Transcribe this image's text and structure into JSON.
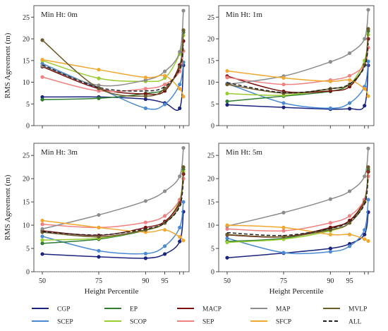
{
  "chart_data": [
    {
      "type": "line",
      "title": "Min Ht: 0m",
      "ylabel": "RMS Agreement (m)",
      "xlabel": "",
      "xticks": [
        50,
        75,
        90,
        95
      ],
      "yticks": [
        0,
        5,
        10,
        15,
        20,
        25
      ],
      "ylim": [
        0,
        27
      ],
      "grid": false,
      "series": [
        {
          "name": "CGP",
          "x": [
            50,
            75,
            90,
            95,
            99,
            100
          ],
          "y": [
            6.6,
            6.6,
            6.1,
            5.2,
            4.0,
            13.9
          ]
        },
        {
          "name": "SCEP",
          "x": [
            50,
            75,
            90,
            95,
            99,
            100
          ],
          "y": [
            14.3,
            8.6,
            4.0,
            4.9,
            9.5,
            14.6
          ]
        },
        {
          "name": "EP",
          "x": [
            50,
            75,
            90,
            95,
            99,
            100
          ],
          "y": [
            6.0,
            6.3,
            7.4,
            8.5,
            13.5,
            21.5
          ]
        },
        {
          "name": "SCOP",
          "x": [
            50,
            75,
            90,
            95,
            99,
            100
          ],
          "y": [
            15.0,
            10.9,
            10.2,
            11.0,
            16.5,
            20.8
          ]
        },
        {
          "name": "MACP",
          "x": [
            50,
            75,
            90,
            95,
            99,
            100
          ],
          "y": [
            13.6,
            8.5,
            7.3,
            8.0,
            14.0,
            19.5
          ]
        },
        {
          "name": "SEP",
          "x": [
            50,
            75,
            90,
            95,
            99,
            100
          ],
          "y": [
            11.2,
            8.0,
            8.5,
            9.5,
            12.5,
            17.2
          ]
        },
        {
          "name": "MAP",
          "x": [
            50,
            75,
            90,
            95,
            99,
            100
          ],
          "y": [
            13.8,
            9.3,
            10.5,
            12.5,
            17.0,
            26.5
          ]
        },
        {
          "name": "SFCP",
          "x": [
            50,
            75,
            90,
            95,
            99,
            100
          ],
          "y": [
            15.2,
            12.9,
            11.1,
            11.5,
            8.5,
            6.7
          ]
        },
        {
          "name": "MVLP",
          "x": [
            50,
            75,
            90,
            95,
            99,
            100
          ],
          "y": [
            19.7,
            8.6,
            6.8,
            8.5,
            13.5,
            22.0
          ]
        },
        {
          "name": "ALL",
          "x": [
            50,
            75,
            90,
            95,
            99,
            100
          ],
          "y": [
            14.0,
            8.8,
            8.0,
            9.0,
            13.0,
            18.5
          ]
        }
      ]
    },
    {
      "type": "line",
      "title": "Min Ht: 1m",
      "ylabel": "",
      "xlabel": "",
      "xticks": [
        50,
        75,
        90,
        95
      ],
      "yticks": [
        0,
        5,
        10,
        15,
        20,
        25
      ],
      "ylim": [
        0,
        27
      ],
      "grid": false,
      "series": [
        {
          "name": "CGP",
          "x": [
            50,
            75,
            90,
            95,
            99,
            100
          ],
          "y": [
            4.8,
            4.2,
            3.8,
            3.9,
            4.6,
            13.9
          ]
        },
        {
          "name": "SCEP",
          "x": [
            50,
            75,
            90,
            95,
            99,
            100
          ],
          "y": [
            9.7,
            5.2,
            4.0,
            5.2,
            9.0,
            14.8
          ]
        },
        {
          "name": "EP",
          "x": [
            50,
            75,
            90,
            95,
            99,
            100
          ],
          "y": [
            5.6,
            6.8,
            7.9,
            9.5,
            14.0,
            21.8
          ]
        },
        {
          "name": "SCOP",
          "x": [
            50,
            75,
            90,
            95,
            99,
            100
          ],
          "y": [
            7.4,
            7.0,
            8.5,
            9.5,
            15.0,
            21.0
          ]
        },
        {
          "name": "MACP",
          "x": [
            50,
            75,
            90,
            95,
            99,
            100
          ],
          "y": [
            11.4,
            7.9,
            8.0,
            9.0,
            14.0,
            20.0
          ]
        },
        {
          "name": "SEP",
          "x": [
            50,
            75,
            90,
            95,
            99,
            100
          ],
          "y": [
            11.1,
            9.5,
            10.5,
            11.5,
            14.0,
            18.0
          ]
        },
        {
          "name": "MAP",
          "x": [
            50,
            75,
            90,
            95,
            99,
            100
          ],
          "y": [
            9.5,
            11.4,
            14.7,
            16.7,
            20.0,
            26.7
          ]
        },
        {
          "name": "SFCP",
          "x": [
            50,
            75,
            90,
            95,
            99,
            100
          ],
          "y": [
            12.6,
            11.0,
            10.2,
            10.5,
            8.5,
            6.8
          ]
        },
        {
          "name": "MVLP",
          "x": [
            50,
            75,
            90,
            95,
            99,
            100
          ],
          "y": [
            9.5,
            7.5,
            8.5,
            9.5,
            14.0,
            22.3
          ]
        },
        {
          "name": "ALL",
          "x": [
            50,
            75,
            90,
            95,
            99,
            100
          ],
          "y": [
            9.9,
            7.6,
            8.5,
            9.6,
            13.5,
            19.0
          ]
        }
      ]
    },
    {
      "type": "line",
      "title": "Min Ht: 3m",
      "ylabel": "RMS Agreement (m)",
      "xlabel": "Height Percentile",
      "xticks": [
        50,
        75,
        90,
        95
      ],
      "yticks": [
        0,
        5,
        10,
        15,
        20,
        25
      ],
      "ylim": [
        0,
        27
      ],
      "grid": false,
      "series": [
        {
          "name": "CGP",
          "x": [
            50,
            75,
            90,
            95,
            99,
            100
          ],
          "y": [
            3.8,
            3.2,
            2.9,
            3.8,
            6.5,
            12.9
          ]
        },
        {
          "name": "SCEP",
          "x": [
            50,
            75,
            90,
            95,
            99,
            100
          ],
          "y": [
            7.6,
            4.5,
            3.9,
            5.5,
            9.5,
            15.0
          ]
        },
        {
          "name": "EP",
          "x": [
            50,
            75,
            90,
            95,
            99,
            100
          ],
          "y": [
            6.1,
            7.0,
            8.9,
            10.5,
            14.5,
            22.0
          ]
        },
        {
          "name": "SCOP",
          "x": [
            50,
            75,
            90,
            95,
            99,
            100
          ],
          "y": [
            6.8,
            7.2,
            9.0,
            10.5,
            15.5,
            21.5
          ]
        },
        {
          "name": "MACP",
          "x": [
            50,
            75,
            90,
            95,
            99,
            100
          ],
          "y": [
            8.8,
            7.8,
            9.5,
            10.8,
            15.0,
            21.0
          ]
        },
        {
          "name": "SEP",
          "x": [
            50,
            75,
            90,
            95,
            99,
            100
          ],
          "y": [
            10.2,
            9.5,
            10.6,
            12.0,
            15.5,
            20.0
          ]
        },
        {
          "name": "MAP",
          "x": [
            50,
            75,
            90,
            95,
            99,
            100
          ],
          "y": [
            9.2,
            12.2,
            15.2,
            17.3,
            20.5,
            26.6
          ]
        },
        {
          "name": "SFCP",
          "x": [
            50,
            75,
            90,
            95,
            99,
            100
          ],
          "y": [
            11.0,
            9.5,
            8.5,
            9.0,
            7.5,
            6.7
          ]
        },
        {
          "name": "MVLP",
          "x": [
            50,
            75,
            90,
            95,
            99,
            100
          ],
          "y": [
            8.5,
            7.5,
            9.0,
            10.5,
            14.5,
            22.5
          ]
        },
        {
          "name": "ALL",
          "x": [
            50,
            75,
            90,
            95,
            99,
            100
          ],
          "y": [
            8.6,
            7.9,
            9.2,
            10.5,
            14.0,
            19.8
          ]
        }
      ]
    },
    {
      "type": "line",
      "title": "Min Ht: 5m",
      "ylabel": "",
      "xlabel": "Height Percentile",
      "xticks": [
        50,
        75,
        90,
        95
      ],
      "yticks": [
        0,
        5,
        10,
        15,
        20,
        25
      ],
      "ylim": [
        0,
        27
      ],
      "grid": false,
      "series": [
        {
          "name": "CGP",
          "x": [
            50,
            75,
            90,
            95,
            99,
            100
          ],
          "y": [
            3.0,
            4.0,
            5.0,
            6.0,
            8.0,
            12.8
          ]
        },
        {
          "name": "SCEP",
          "x": [
            50,
            75,
            90,
            95,
            99,
            100
          ],
          "y": [
            7.2,
            4.1,
            4.3,
            5.5,
            9.0,
            15.5
          ]
        },
        {
          "name": "EP",
          "x": [
            50,
            75,
            90,
            95,
            99,
            100
          ],
          "y": [
            6.5,
            7.2,
            9.3,
            11.0,
            15.0,
            22.0
          ]
        },
        {
          "name": "SCOP",
          "x": [
            50,
            75,
            90,
            95,
            99,
            100
          ],
          "y": [
            6.3,
            7.0,
            8.8,
            10.5,
            15.0,
            21.5
          ]
        },
        {
          "name": "MACP",
          "x": [
            50,
            75,
            90,
            95,
            99,
            100
          ],
          "y": [
            7.9,
            7.5,
            9.5,
            11.0,
            15.5,
            21.5
          ]
        },
        {
          "name": "SEP",
          "x": [
            50,
            75,
            90,
            95,
            99,
            100
          ],
          "y": [
            9.2,
            8.8,
            10.5,
            12.0,
            15.5,
            20.5
          ]
        },
        {
          "name": "MAP",
          "x": [
            50,
            75,
            90,
            95,
            99,
            100
          ],
          "y": [
            9.8,
            12.7,
            15.6,
            17.3,
            20.5,
            26.5
          ]
        },
        {
          "name": "SFCP",
          "x": [
            50,
            75,
            90,
            95,
            99,
            100
          ],
          "y": [
            10.0,
            9.5,
            8.0,
            8.0,
            7.0,
            6.6
          ]
        },
        {
          "name": "MVLP",
          "x": [
            50,
            75,
            90,
            95,
            99,
            100
          ],
          "y": [
            8.0,
            7.5,
            9.0,
            10.5,
            15.0,
            22.5
          ]
        },
        {
          "name": "ALL",
          "x": [
            50,
            75,
            90,
            95,
            99,
            100
          ],
          "y": [
            8.4,
            7.8,
            9.3,
            10.8,
            14.5,
            20.3
          ]
        }
      ]
    }
  ],
  "legend": {
    "placement": "bottom",
    "entries": [
      {
        "name": "CGP",
        "color": "#1a237e",
        "dashed": false
      },
      {
        "name": "EP",
        "color": "#2e7d32",
        "dashed": false
      },
      {
        "name": "MACP",
        "color": "#7b1010",
        "dashed": false
      },
      {
        "name": "MAP",
        "color": "#8c8c8c",
        "dashed": false
      },
      {
        "name": "MVLP",
        "color": "#6d5a2a",
        "dashed": false
      },
      {
        "name": "SCEP",
        "color": "#4a8ad4",
        "dashed": false
      },
      {
        "name": "SCOP",
        "color": "#9acd32",
        "dashed": false
      },
      {
        "name": "SEP",
        "color": "#f08080",
        "dashed": false
      },
      {
        "name": "SFCP",
        "color": "#f0a830",
        "dashed": false
      },
      {
        "name": "ALL",
        "color": "#222222",
        "dashed": true
      }
    ]
  }
}
